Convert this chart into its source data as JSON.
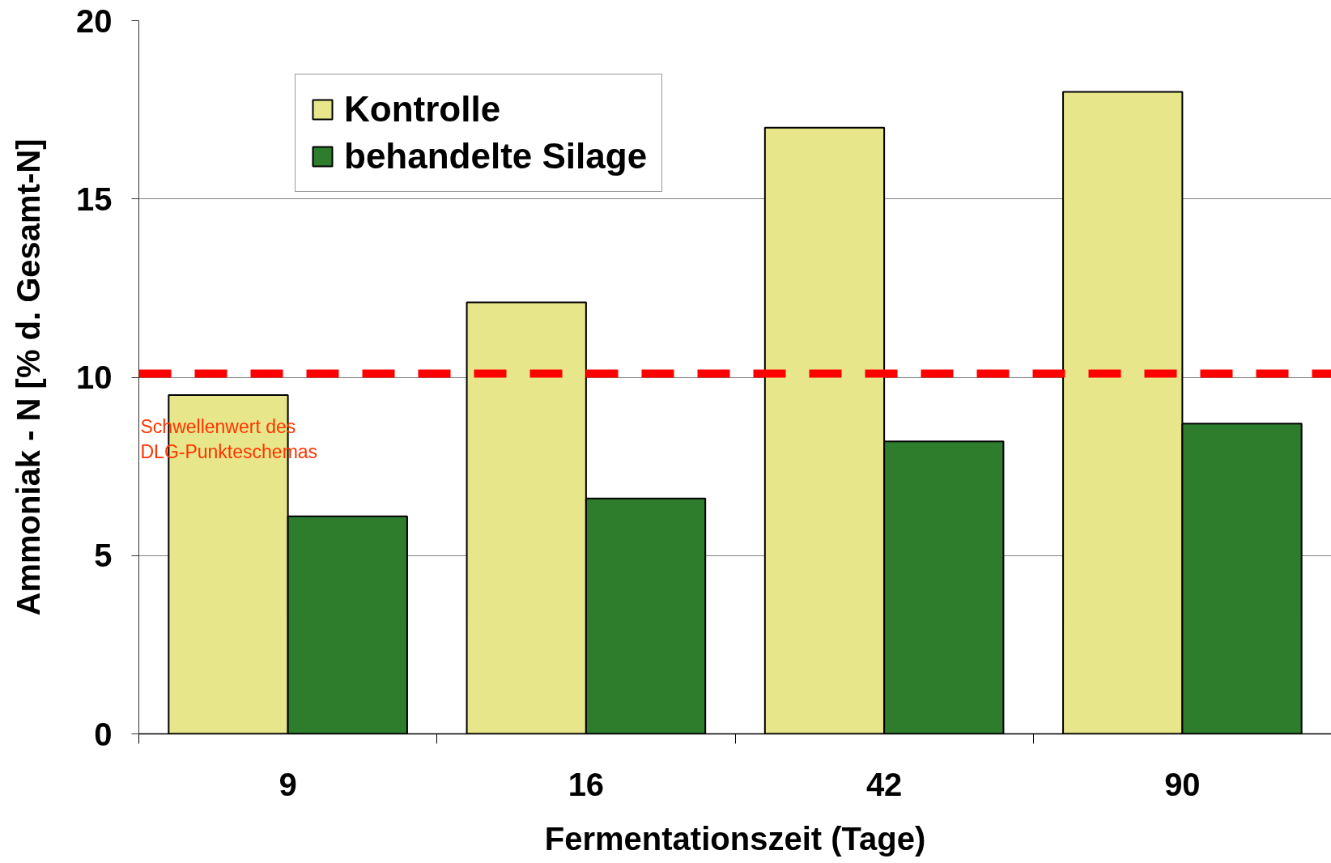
{
  "chart_data": {
    "type": "bar",
    "categories": [
      "9",
      "16",
      "42",
      "90"
    ],
    "series": [
      {
        "name": "Kontrolle",
        "color": "#e8e68a",
        "values": [
          9.5,
          12.1,
          17.0,
          18.0
        ]
      },
      {
        "name": "behandelte Silage",
        "color": "#2d7d2d",
        "values": [
          6.1,
          6.6,
          8.2,
          8.7
        ]
      }
    ],
    "xlabel": "Fermentationszeit (Tage)",
    "ylabel": "Ammoniak - N [% d. Gesamt-N]",
    "ylim": [
      0,
      20
    ],
    "yticks": [
      0,
      5,
      10,
      15,
      20
    ],
    "grid": "y",
    "legend": "top left",
    "ref_lines": [
      {
        "axis": "y",
        "value": 10.1,
        "label": "Schwellenwert des\nDLG-Punkteschemas",
        "color": "#ff0000",
        "line_style": "dashed"
      }
    ]
  }
}
